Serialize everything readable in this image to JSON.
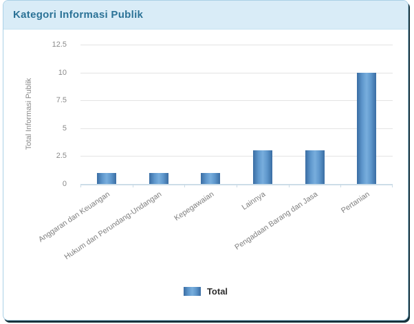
{
  "header": {
    "title": "Kategori Informasi Publik"
  },
  "chart_data": {
    "type": "bar",
    "title": "Kategori Informasi Publik",
    "categories": [
      "Anggaran dan Keuangan",
      "Hukum dan Perundang-Undangan",
      "Kepegawaian",
      "Lainnya",
      "Pengadaan Barang dan Jasa",
      "Pertanian"
    ],
    "series": [
      {
        "name": "Total",
        "values": [
          1,
          1,
          1,
          3,
          3,
          10
        ]
      }
    ],
    "xlabel": "",
    "ylabel": "Total Informasi Publik",
    "yticks": [
      0,
      2.5,
      5,
      7.5,
      10,
      12.5
    ],
    "ylim": [
      0,
      12.5
    ],
    "grid": true,
    "legend_position": "bottom"
  },
  "legend": {
    "label": "Total"
  },
  "colors": {
    "header_bg": "#d9ecf7",
    "title_text": "#2b7296",
    "card_border": "#a9d0e6",
    "card_edge_shadow": "#16323c",
    "bar_edge": "#3a6da3",
    "bar_center": "#78aedd",
    "gridline": "#e3e3e3",
    "axis_line": "#c9dae5",
    "tick_text": "#898989",
    "legend_text": "#2d2d2d"
  }
}
